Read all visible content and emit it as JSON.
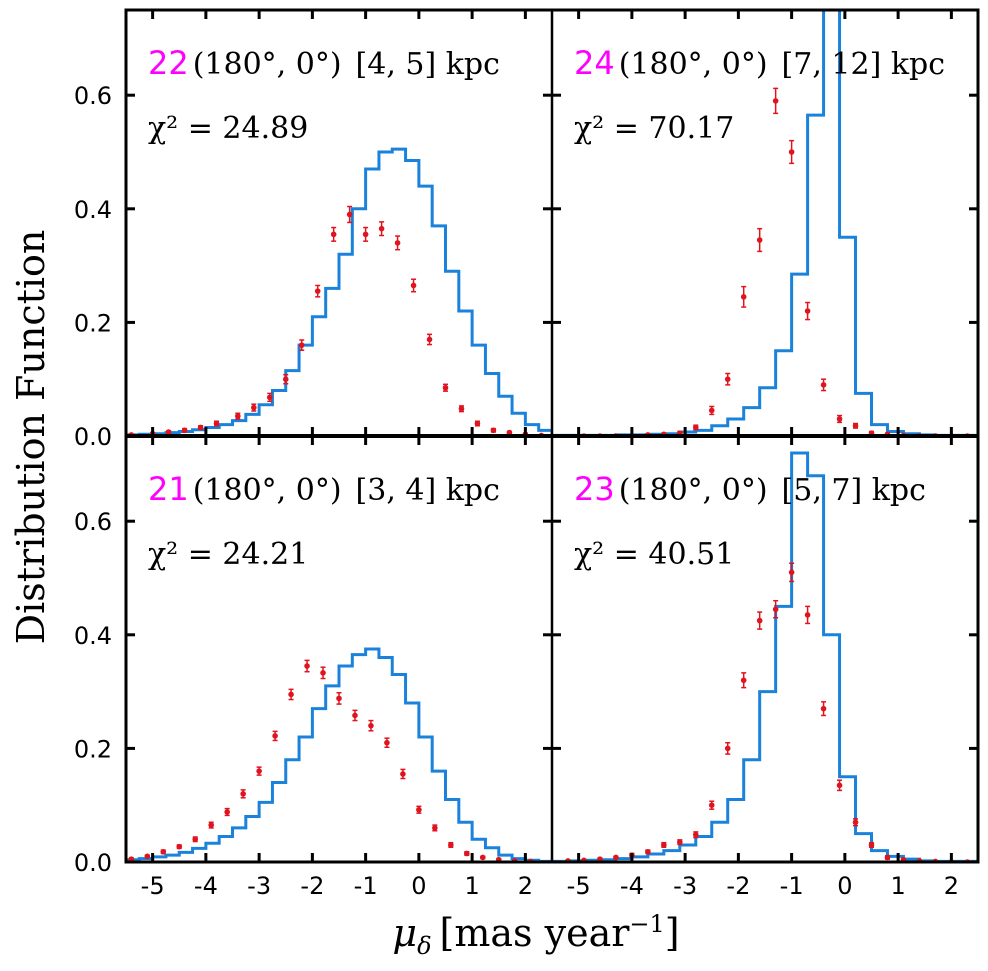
{
  "figure": {
    "ylabel": "Distribution Function",
    "xlabel_symbol": "μ",
    "xlabel_subscript": "δ",
    "xlabel_unit": "[mas year",
    "xlabel_exp": "−1",
    "xlabel_close": "]"
  },
  "colors": {
    "model": "#1b82dc",
    "data": "#e0141e",
    "panel_number": "#ff00ff"
  },
  "axes": {
    "xlim": [
      -5.5,
      2.5
    ],
    "ylim": [
      0.0,
      0.75
    ],
    "xticks": [
      -5,
      -4,
      -3,
      -2,
      -1,
      0,
      1,
      2
    ],
    "xtick_labels": [
      "-5",
      "-4",
      "-3",
      "-2",
      "-1",
      "0",
      "1",
      "2"
    ],
    "yticks": [
      0.0,
      0.2,
      0.4,
      0.6
    ],
    "ytick_labels": [
      "0.0",
      "0.2",
      "0.4",
      "0.6"
    ]
  },
  "chart_data": [
    {
      "type": "line",
      "panel": "top-left",
      "panel_number": "22",
      "direction": "(180°, 0°)",
      "distance": "[4, 5] kpc",
      "chi2_label": "χ² = 24.89",
      "bin_width": 0.25,
      "model_bin_starts": [
        -5.5,
        -5.25,
        -5.0,
        -4.75,
        -4.5,
        -4.25,
        -4.0,
        -3.75,
        -3.5,
        -3.25,
        -3.0,
        -2.75,
        -2.5,
        -2.25,
        -2.0,
        -1.75,
        -1.5,
        -1.25,
        -1.0,
        -0.75,
        -0.5,
        -0.25,
        0.0,
        0.25,
        0.5,
        0.75,
        1.0,
        1.25,
        1.5,
        1.75,
        2.0,
        2.25
      ],
      "model_values": [
        0.002,
        0.003,
        0.004,
        0.006,
        0.008,
        0.011,
        0.015,
        0.02,
        0.027,
        0.038,
        0.055,
        0.08,
        0.115,
        0.16,
        0.21,
        0.26,
        0.32,
        0.4,
        0.47,
        0.5,
        0.505,
        0.485,
        0.44,
        0.37,
        0.29,
        0.22,
        0.16,
        0.11,
        0.07,
        0.04,
        0.02,
        0.01
      ],
      "data_x": [
        -5.4,
        -5.0,
        -4.7,
        -4.4,
        -4.1,
        -3.8,
        -3.4,
        -3.1,
        -2.8,
        -2.5,
        -2.2,
        -1.9,
        -1.6,
        -1.3,
        -1.0,
        -0.7,
        -0.4,
        -0.1,
        0.2,
        0.5,
        0.8,
        1.1,
        1.4,
        1.7,
        2.0,
        2.3
      ],
      "data_y": [
        0.002,
        0.004,
        0.007,
        0.01,
        0.015,
        0.022,
        0.035,
        0.05,
        0.068,
        0.1,
        0.16,
        0.255,
        0.355,
        0.39,
        0.355,
        0.365,
        0.34,
        0.265,
        0.17,
        0.085,
        0.048,
        0.022,
        0.01,
        0.006,
        0.003,
        0.001
      ],
      "data_err": [
        0.001,
        0.002,
        0.002,
        0.003,
        0.003,
        0.004,
        0.005,
        0.006,
        0.007,
        0.008,
        0.009,
        0.01,
        0.012,
        0.014,
        0.012,
        0.012,
        0.012,
        0.011,
        0.009,
        0.006,
        0.005,
        0.004,
        0.003,
        0.002,
        0.002,
        0.001
      ]
    },
    {
      "type": "line",
      "panel": "top-right",
      "panel_number": "24",
      "direction": "(180°, 0°)",
      "distance": "[7, 12] kpc",
      "chi2_label": "χ² = 70.17",
      "bin_width": 0.3,
      "model_bin_starts": [
        -5.5,
        -5.2,
        -4.9,
        -4.6,
        -4.3,
        -4.0,
        -3.7,
        -3.4,
        -3.1,
        -2.8,
        -2.5,
        -2.2,
        -1.9,
        -1.6,
        -1.3,
        -1.0,
        -0.7,
        -0.4,
        -0.1,
        0.2,
        0.5,
        0.8,
        1.1,
        1.4,
        1.7,
        2.0,
        2.3
      ],
      "model_values": [
        0.001,
        0.001,
        0.001,
        0.001,
        0.002,
        0.002,
        0.003,
        0.004,
        0.007,
        0.01,
        0.018,
        0.03,
        0.05,
        0.085,
        0.15,
        0.285,
        0.565,
        1.2,
        0.35,
        0.075,
        0.02,
        0.008,
        0.004,
        0.002,
        0.001,
        0.001,
        0.001
      ],
      "data_x": [
        -4.9,
        -4.6,
        -4.3,
        -4.0,
        -3.7,
        -3.4,
        -3.1,
        -2.8,
        -2.5,
        -2.2,
        -1.9,
        -1.6,
        -1.3,
        -1.0,
        -0.7,
        -0.4,
        -0.1,
        0.2,
        0.5,
        0.8,
        1.1,
        1.4,
        1.7,
        2.0,
        2.3
      ],
      "data_y": [
        0.0,
        0.0,
        0.0,
        0.0,
        0.002,
        0.003,
        0.005,
        0.015,
        0.045,
        0.1,
        0.245,
        0.345,
        0.59,
        0.5,
        0.22,
        0.09,
        0.03,
        0.018,
        0.005,
        0.003,
        0.001,
        0.0,
        0.0,
        0.0,
        0.0
      ],
      "data_err": [
        0.001,
        0.001,
        0.001,
        0.001,
        0.002,
        0.002,
        0.003,
        0.004,
        0.007,
        0.01,
        0.018,
        0.02,
        0.022,
        0.02,
        0.015,
        0.01,
        0.006,
        0.004,
        0.003,
        0.002,
        0.001,
        0.001,
        0.001,
        0.001,
        0.001
      ]
    },
    {
      "type": "line",
      "panel": "bottom-left",
      "panel_number": "21",
      "direction": "(180°, 0°)",
      "distance": "[3, 4] kpc",
      "chi2_label": "χ² = 24.21",
      "bin_width": 0.25,
      "model_bin_starts": [
        -5.5,
        -5.25,
        -5.0,
        -4.75,
        -4.5,
        -4.25,
        -4.0,
        -3.75,
        -3.5,
        -3.25,
        -3.0,
        -2.75,
        -2.5,
        -2.25,
        -2.0,
        -1.75,
        -1.5,
        -1.25,
        -1.0,
        -0.75,
        -0.5,
        -0.25,
        0.0,
        0.25,
        0.5,
        0.75,
        1.0,
        1.25,
        1.5,
        1.75,
        2.0,
        2.25
      ],
      "model_values": [
        0.004,
        0.006,
        0.009,
        0.012,
        0.017,
        0.024,
        0.033,
        0.045,
        0.06,
        0.08,
        0.105,
        0.14,
        0.18,
        0.22,
        0.27,
        0.31,
        0.345,
        0.365,
        0.375,
        0.36,
        0.33,
        0.28,
        0.22,
        0.16,
        0.11,
        0.07,
        0.04,
        0.025,
        0.012,
        0.006,
        0.003,
        0.001
      ],
      "data_x": [
        -5.4,
        -5.1,
        -4.8,
        -4.5,
        -4.2,
        -3.9,
        -3.6,
        -3.3,
        -3.0,
        -2.7,
        -2.4,
        -2.1,
        -1.8,
        -1.5,
        -1.2,
        -0.9,
        -0.6,
        -0.3,
        0.0,
        0.3,
        0.6,
        0.9,
        1.2,
        1.5,
        1.8,
        2.1
      ],
      "data_y": [
        0.005,
        0.01,
        0.018,
        0.027,
        0.04,
        0.065,
        0.088,
        0.12,
        0.16,
        0.222,
        0.295,
        0.345,
        0.333,
        0.288,
        0.258,
        0.24,
        0.21,
        0.155,
        0.092,
        0.06,
        0.03,
        0.015,
        0.008,
        0.004,
        0.002,
        0.001
      ],
      "data_err": [
        0.002,
        0.002,
        0.003,
        0.003,
        0.004,
        0.005,
        0.006,
        0.007,
        0.007,
        0.008,
        0.009,
        0.01,
        0.01,
        0.01,
        0.009,
        0.009,
        0.008,
        0.008,
        0.006,
        0.005,
        0.004,
        0.003,
        0.002,
        0.002,
        0.001,
        0.001
      ]
    },
    {
      "type": "line",
      "panel": "bottom-right",
      "panel_number": "23",
      "direction": "(180°, 0°)",
      "distance": "[5, 7] kpc",
      "chi2_label": "χ² = 40.51",
      "bin_width": 0.3,
      "model_bin_starts": [
        -5.5,
        -5.2,
        -4.9,
        -4.6,
        -4.3,
        -4.0,
        -3.7,
        -3.4,
        -3.1,
        -2.8,
        -2.5,
        -2.2,
        -1.9,
        -1.6,
        -1.3,
        -1.0,
        -0.7,
        -0.4,
        -0.1,
        0.2,
        0.5,
        0.8,
        1.1,
        1.4,
        1.7,
        2.0,
        2.3
      ],
      "model_values": [
        0.001,
        0.002,
        0.003,
        0.004,
        0.006,
        0.009,
        0.014,
        0.02,
        0.03,
        0.045,
        0.07,
        0.11,
        0.18,
        0.3,
        0.45,
        0.72,
        0.68,
        0.4,
        0.15,
        0.05,
        0.02,
        0.01,
        0.005,
        0.002,
        0.001,
        0.001,
        0.001
      ],
      "data_x": [
        -5.2,
        -4.9,
        -4.6,
        -4.3,
        -4.0,
        -3.7,
        -3.4,
        -3.1,
        -2.8,
        -2.5,
        -2.2,
        -1.9,
        -1.6,
        -1.3,
        -1.0,
        -0.7,
        -0.4,
        -0.1,
        0.2,
        0.5,
        0.8,
        1.1,
        1.4,
        1.7,
        2.0,
        2.3
      ],
      "data_y": [
        0.002,
        0.003,
        0.005,
        0.008,
        0.012,
        0.018,
        0.03,
        0.035,
        0.048,
        0.1,
        0.2,
        0.32,
        0.425,
        0.445,
        0.51,
        0.435,
        0.27,
        0.135,
        0.07,
        0.03,
        0.008,
        0.004,
        0.002,
        0.001,
        0.0,
        0.0
      ],
      "data_err": [
        0.001,
        0.001,
        0.002,
        0.002,
        0.003,
        0.003,
        0.004,
        0.004,
        0.005,
        0.007,
        0.01,
        0.013,
        0.015,
        0.015,
        0.016,
        0.015,
        0.012,
        0.009,
        0.006,
        0.004,
        0.003,
        0.002,
        0.001,
        0.001,
        0.001,
        0.001
      ]
    }
  ]
}
